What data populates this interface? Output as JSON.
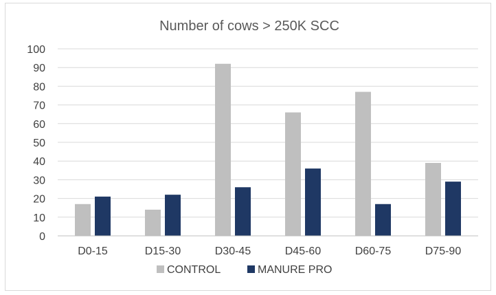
{
  "chart_data": {
    "type": "bar",
    "title": "Number of cows > 250K SCC",
    "xlabel": "",
    "ylabel": "",
    "ylim": [
      0,
      100
    ],
    "yticks": [
      0,
      10,
      20,
      30,
      40,
      50,
      60,
      70,
      80,
      90,
      100
    ],
    "categories": [
      "D0-15",
      "D15-30",
      "D30-45",
      "D45-60",
      "D60-75",
      "D75-90"
    ],
    "series": [
      {
        "name": "CONTROL",
        "color": "#bfbfbf",
        "values": [
          17,
          14,
          92,
          66,
          77,
          39
        ]
      },
      {
        "name": "MANURE PRO",
        "color": "#1f3864",
        "values": [
          21,
          22,
          26,
          36,
          17,
          29
        ]
      }
    ],
    "grid": true,
    "legend": "bottom"
  }
}
